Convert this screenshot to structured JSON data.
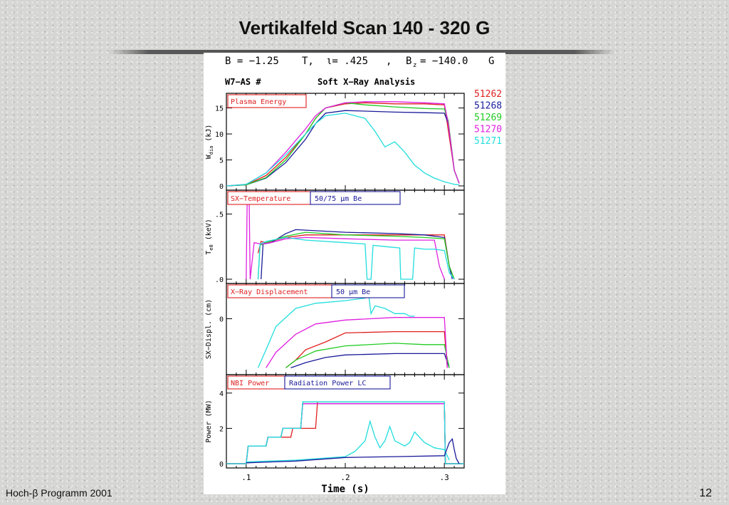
{
  "slide": {
    "title": "Vertikalfeld Scan 140 - 320 G",
    "footer_left": "Hoch-β Programm 2001",
    "page_number": "12"
  },
  "chart_header": {
    "params_line": "B = −1.25  T,  ι= .425   ,  B_z = −140.0 G",
    "b_label": "B = −1.25",
    "t_unit": "T,",
    "iota_label": "ι= .425",
    "comma": ",",
    "bz_label": "B",
    "bz_sub": "z",
    "bz_value": "= −140.0",
    "g_unit": "G",
    "machine": "W7−AS  #",
    "analysis": "Soft X−Ray Analysis"
  },
  "legend": [
    {
      "shot": "51262",
      "color": "#e02020"
    },
    {
      "shot": "51268",
      "color": "#1a1a9a"
    },
    {
      "shot": "51269",
      "color": "#22cc22"
    },
    {
      "shot": "51270",
      "color": "#e020e0"
    },
    {
      "shot": "51271",
      "color": "#22dddd"
    }
  ],
  "chart_data": [
    {
      "type": "line",
      "panel_label": "Plasma Energy",
      "ylabel": "W_dia (kJ)",
      "ylabel_main": "W",
      "ylabel_sub": "dia",
      "ylabel_unit": " (kJ)",
      "yticks": [
        "0",
        "5",
        "10",
        "15"
      ],
      "ylim": [
        0,
        17
      ],
      "xlim": [
        0.08,
        0.32
      ],
      "series": [
        {
          "name": "51262",
          "color": "#e02020",
          "x": [
            0.08,
            0.1,
            0.12,
            0.14,
            0.16,
            0.17,
            0.18,
            0.2,
            0.22,
            0.25,
            0.28,
            0.3,
            0.303,
            0.31,
            0.315
          ],
          "y": [
            0,
            0.2,
            2,
            5.5,
            10,
            13,
            15,
            15.8,
            16,
            15.8,
            15.8,
            15.6,
            12,
            3,
            0.5
          ]
        },
        {
          "name": "51268",
          "color": "#1a1a9a",
          "x": [
            0.08,
            0.1,
            0.12,
            0.14,
            0.16,
            0.17,
            0.18,
            0.2,
            0.22,
            0.25,
            0.28,
            0.3,
            0.304,
            0.31,
            0.315
          ],
          "y": [
            0,
            0.2,
            1.5,
            4.5,
            9,
            12,
            14,
            14.5,
            14.4,
            14.2,
            14.1,
            14,
            12,
            3,
            0.5
          ]
        },
        {
          "name": "51269",
          "color": "#22cc22",
          "x": [
            0.08,
            0.1,
            0.12,
            0.14,
            0.16,
            0.17,
            0.18,
            0.2,
            0.22,
            0.25,
            0.28,
            0.3,
            0.304,
            0.31,
            0.315
          ],
          "y": [
            0,
            0.2,
            1.6,
            5,
            10,
            13,
            15,
            16,
            15.6,
            15.2,
            14.9,
            14.8,
            12.5,
            3,
            0.5
          ]
        },
        {
          "name": "51270",
          "color": "#e020e0",
          "x": [
            0.08,
            0.1,
            0.12,
            0.14,
            0.16,
            0.17,
            0.18,
            0.2,
            0.22,
            0.25,
            0.28,
            0.3,
            0.304,
            0.31,
            0.315
          ],
          "y": [
            0,
            0.3,
            2.5,
            6.5,
            11,
            13.5,
            15,
            16,
            16.2,
            16.2,
            16,
            15.8,
            12,
            3,
            0.5
          ]
        },
        {
          "name": "51271",
          "color": "#22dddd",
          "x": [
            0.08,
            0.1,
            0.12,
            0.14,
            0.16,
            0.17,
            0.18,
            0.2,
            0.22,
            0.23,
            0.24,
            0.25,
            0.26,
            0.27,
            0.28,
            0.29,
            0.3,
            0.31,
            0.315
          ],
          "y": [
            0,
            0.3,
            2.5,
            6,
            10,
            12,
            13.5,
            14,
            13,
            10.5,
            7.5,
            8.5,
            6.5,
            4,
            2.5,
            1.5,
            0.8,
            0.3,
            0.2
          ]
        }
      ]
    },
    {
      "type": "line",
      "panel_label": "SX−Temperature",
      "panel_label2": "50/75  μm Be",
      "ylabel": "T_e0 (keV)",
      "ylabel_main": "T",
      "ylabel_sub": "e0",
      "ylabel_unit": " (keV)",
      "yticks": [
        ".0",
        ".5"
      ],
      "ylim": [
        0,
        0.65
      ],
      "xlim": [
        0.08,
        0.32
      ],
      "series": [
        {
          "name": "51262",
          "color": "#e02020",
          "x": [
            0.112,
            0.115,
            0.12,
            0.14,
            0.16,
            0.2,
            0.25,
            0.28,
            0.3,
            0.305,
            0.31
          ],
          "y": [
            0.2,
            0.29,
            0.28,
            0.32,
            0.34,
            0.34,
            0.34,
            0.34,
            0.34,
            0.1,
            0
          ]
        },
        {
          "name": "51268",
          "color": "#1a1a9a",
          "x": [
            0.115,
            0.117,
            0.125,
            0.14,
            0.15,
            0.2,
            0.25,
            0.28,
            0.3,
            0.305,
            0.308
          ],
          "y": [
            0,
            0.27,
            0.28,
            0.35,
            0.38,
            0.36,
            0.35,
            0.34,
            0.32,
            0.1,
            0
          ]
        },
        {
          "name": "51269",
          "color": "#22cc22",
          "x": [
            0.112,
            0.114,
            0.12,
            0.14,
            0.16,
            0.2,
            0.25,
            0.28,
            0.3,
            0.305,
            0.31
          ],
          "y": [
            0,
            0.26,
            0.28,
            0.33,
            0.36,
            0.34,
            0.33,
            0.32,
            0.31,
            0.1,
            0
          ]
        },
        {
          "name": "51270",
          "color": "#e020e0",
          "x": [
            0.1,
            0.101,
            0.103,
            0.104,
            0.108,
            0.115,
            0.125,
            0.14,
            0.16,
            0.2,
            0.25,
            0.29,
            0.295,
            0.3
          ],
          "y": [
            0,
            0.6,
            0.6,
            0,
            0.28,
            0.27,
            0.28,
            0.31,
            0.32,
            0.31,
            0.3,
            0.3,
            0.1,
            0
          ]
        },
        {
          "name": "51271",
          "color": "#22dddd",
          "x": [
            0.112,
            0.114,
            0.12,
            0.14,
            0.16,
            0.2,
            0.22,
            0.222,
            0.226,
            0.228,
            0.24,
            0.255,
            0.256,
            0.268,
            0.27,
            0.28,
            0.29,
            0.3,
            0.305,
            0.31
          ],
          "y": [
            0,
            0.27,
            0.29,
            0.32,
            0.3,
            0.28,
            0.27,
            0,
            0,
            0.26,
            0.25,
            0.24,
            0,
            0,
            0.24,
            0.23,
            0.23,
            0.22,
            0.05,
            0
          ]
        }
      ]
    },
    {
      "type": "line",
      "panel_label": "X−Ray Displacement",
      "panel_label2": "50  μm Be",
      "ylabel": "SX−Displ. (cm)",
      "yticks": [
        "0"
      ],
      "ylim": [
        -2,
        1.2
      ],
      "xlim": [
        0.08,
        0.32
      ],
      "series": [
        {
          "name": "51262",
          "color": "#e02020",
          "x": [
            0.14,
            0.15,
            0.16,
            0.18,
            0.2,
            0.25,
            0.28,
            0.3,
            0.303
          ],
          "y": [
            -1.9,
            -1.6,
            -1.2,
            -0.9,
            -0.55,
            -0.5,
            -0.5,
            -0.5,
            -1.9
          ]
        },
        {
          "name": "51268",
          "color": "#1a1a9a",
          "x": [
            0.145,
            0.16,
            0.18,
            0.2,
            0.25,
            0.28,
            0.3,
            0.305
          ],
          "y": [
            -1.9,
            -1.7,
            -1.5,
            -1.4,
            -1.35,
            -1.35,
            -1.35,
            -1.9
          ]
        },
        {
          "name": "51269",
          "color": "#22cc22",
          "x": [
            0.14,
            0.15,
            0.17,
            0.2,
            0.25,
            0.28,
            0.3,
            0.305
          ],
          "y": [
            -1.9,
            -1.6,
            -1.25,
            -1.05,
            -0.95,
            -1.0,
            -1.0,
            -1.9
          ]
        },
        {
          "name": "51270",
          "color": "#e020e0",
          "x": [
            0.12,
            0.13,
            0.15,
            0.17,
            0.2,
            0.25,
            0.28,
            0.3,
            0.303
          ],
          "y": [
            -1.9,
            -1.3,
            -0.6,
            -0.2,
            -0.05,
            0.05,
            0.05,
            0.05,
            -1.9
          ]
        },
        {
          "name": "51271",
          "color": "#22dddd",
          "x": [
            0.112,
            0.12,
            0.13,
            0.15,
            0.17,
            0.2,
            0.22,
            0.223,
            0.226,
            0.23,
            0.24,
            0.25,
            0.26,
            0.265,
            0.27
          ],
          "y": [
            -1.9,
            -1.2,
            -0.3,
            0.4,
            0.6,
            0.7,
            0.8,
            1.1,
            0.2,
            0.5,
            0.4,
            0.2,
            0.2,
            0.1,
            0.1
          ]
        }
      ]
    },
    {
      "type": "line",
      "panel_label": "NBI Power",
      "panel_label2": "Radiation Power LC",
      "ylabel": "Power (MW)",
      "yticks": [
        "0",
        "2",
        "4"
      ],
      "ylim": [
        0,
        4.8
      ],
      "xlim": [
        0.08,
        0.32
      ],
      "xticks": [
        ".1",
        ".2",
        ".3"
      ],
      "xtick_values": [
        0.1,
        0.2,
        0.3
      ],
      "xlabel": "Time (s)",
      "series": [
        {
          "name": "51262",
          "color": "#e02020",
          "x": [
            0.08,
            0.1,
            0.102,
            0.12,
            0.122,
            0.145,
            0.147,
            0.16,
            0.162,
            0.17,
            0.172,
            0.3,
            0.301,
            0.32
          ],
          "y": [
            0,
            0,
            1,
            1,
            1.5,
            1.5,
            2,
            2,
            2,
            2,
            3.5,
            3.5,
            0,
            0
          ]
        },
        {
          "name": "51268",
          "color": "#1a1a9a",
          "x": [
            0.08,
            0.1,
            0.102,
            0.12,
            0.122,
            0.135,
            0.137,
            0.145,
            0.147,
            0.155,
            0.157,
            0.3,
            0.301,
            0.32
          ],
          "y": [
            0,
            0,
            1,
            1,
            1.5,
            1.5,
            2,
            2,
            2,
            2,
            3.4,
            3.4,
            0,
            0
          ]
        },
        {
          "name": "51269",
          "color": "#22cc22",
          "x": [
            0.08,
            0.1,
            0.102,
            0.12,
            0.122,
            0.135,
            0.137,
            0.145,
            0.147,
            0.155,
            0.157,
            0.3,
            0.301,
            0.32
          ],
          "y": [
            0,
            0,
            1,
            1,
            1.5,
            1.5,
            2,
            2,
            2,
            2,
            3.5,
            3.5,
            0,
            0
          ]
        },
        {
          "name": "51270",
          "color": "#e020e0",
          "x": [
            0.08,
            0.1,
            0.102,
            0.12,
            0.122,
            0.135,
            0.137,
            0.145,
            0.147,
            0.155,
            0.157,
            0.3,
            0.301,
            0.32
          ],
          "y": [
            0,
            0,
            1,
            1,
            1.5,
            1.5,
            2,
            2,
            2,
            2,
            3.4,
            3.4,
            0,
            0
          ]
        },
        {
          "name": "51271",
          "color": "#22dddd",
          "x": [
            0.08,
            0.1,
            0.102,
            0.12,
            0.122,
            0.135,
            0.137,
            0.145,
            0.147,
            0.155,
            0.157,
            0.3,
            0.301,
            0.32
          ],
          "y": [
            0,
            0,
            1,
            1,
            1.5,
            1.5,
            2,
            2,
            2,
            2,
            3.5,
            3.5,
            0,
            0
          ]
        },
        {
          "name": "51271 rad",
          "color": "#22dddd",
          "x": [
            0.1,
            0.15,
            0.2,
            0.21,
            0.22,
            0.225,
            0.23,
            0.235,
            0.24,
            0.245,
            0.25,
            0.26,
            0.265,
            0.27,
            0.28,
            0.29,
            0.3,
            0.305
          ],
          "y": [
            0.1,
            0.2,
            0.4,
            0.7,
            1.3,
            2.4,
            1.5,
            0.9,
            1.3,
            2.1,
            1.3,
            1.0,
            1.2,
            1.8,
            1.2,
            0.9,
            0.8,
            0.2
          ]
        },
        {
          "name": "51268 rad",
          "color": "#1a1a9a",
          "x": [
            0.1,
            0.15,
            0.2,
            0.25,
            0.3,
            0.305,
            0.308,
            0.31,
            0.312,
            0.315
          ],
          "y": [
            0.05,
            0.15,
            0.35,
            0.4,
            0.45,
            1.2,
            1.4,
            0.8,
            0.3,
            0
          ]
        }
      ]
    }
  ]
}
